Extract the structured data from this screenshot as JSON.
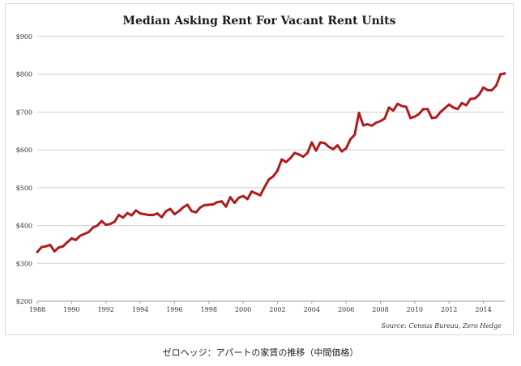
{
  "caption": "ゼロヘッジ：アパートの家賃の推移（中間価格）",
  "colors": {
    "line": "#b01c1c",
    "grid": "#cfcfcf",
    "frame": "#d9d9d9"
  },
  "chart_data": {
    "type": "line",
    "title": "Median Asking Rent For Vacant Rent Units",
    "xlabel": "",
    "ylabel": "",
    "source": "Source: Census Bureau, Zero Hedge",
    "xlim": [
      1988,
      2015.25
    ],
    "ylim": [
      200,
      900
    ],
    "y_ticks": [
      200,
      300,
      400,
      500,
      600,
      700,
      800,
      900
    ],
    "y_tick_labels": [
      "$200",
      "$300",
      "$400",
      "$500",
      "$600",
      "$700",
      "$800",
      "$900"
    ],
    "x_ticks": [
      1988,
      1990,
      1992,
      1994,
      1996,
      1998,
      2000,
      2002,
      2004,
      2006,
      2008,
      2010,
      2012,
      2014
    ],
    "x_tick_labels": [
      "1988",
      "1990",
      "1992",
      "1994",
      "1996",
      "1998",
      "2000",
      "2002",
      "2004",
      "2006",
      "2008",
      "2010",
      "2012",
      "2014"
    ],
    "grid": true,
    "legend": "none",
    "series": [
      {
        "x": [
          1988.0,
          1988.25,
          1988.5,
          1988.75,
          1989.0,
          1989.25,
          1989.5,
          1989.75,
          1990.0,
          1990.25,
          1990.5,
          1990.75,
          1991.0,
          1991.25,
          1991.5,
          1991.75,
          1992.0,
          1992.25,
          1992.5,
          1992.75,
          1993.0,
          1993.25,
          1993.5,
          1993.75,
          1994.0,
          1994.25,
          1994.5,
          1994.75,
          1995.0,
          1995.25,
          1995.5,
          1995.75,
          1996.0,
          1996.25,
          1996.5,
          1996.75,
          1997.0,
          1997.25,
          1997.5,
          1997.75,
          1998.0,
          1998.25,
          1998.5,
          1998.75,
          1999.0,
          1999.25,
          1999.5,
          1999.75,
          2000.0,
          2000.25,
          2000.5,
          2000.75,
          2001.0,
          2001.25,
          2001.5,
          2001.75,
          2002.0,
          2002.25,
          2002.5,
          2002.75,
          2003.0,
          2003.25,
          2003.5,
          2003.75,
          2004.0,
          2004.25,
          2004.5,
          2004.75,
          2005.0,
          2005.25,
          2005.5,
          2005.75,
          2006.0,
          2006.25,
          2006.5,
          2006.75,
          2007.0,
          2007.25,
          2007.5,
          2007.75,
          2008.0,
          2008.25,
          2008.5,
          2008.75,
          2009.0,
          2009.25,
          2009.5,
          2009.75,
          2010.0,
          2010.25,
          2010.5,
          2010.75,
          2011.0,
          2011.25,
          2011.5,
          2011.75,
          2012.0,
          2012.25,
          2012.5,
          2012.75,
          2013.0,
          2013.25,
          2013.5,
          2013.75,
          2014.0,
          2014.25,
          2014.5,
          2014.75,
          2015.0,
          2015.25
        ],
        "values": [
          330,
          343,
          345,
          349,
          332,
          342,
          345,
          356,
          366,
          362,
          373,
          378,
          383,
          395,
          400,
          412,
          402,
          404,
          410,
          428,
          421,
          433,
          427,
          440,
          432,
          430,
          428,
          428,
          432,
          422,
          438,
          444,
          430,
          438,
          448,
          455,
          438,
          435,
          448,
          454,
          455,
          456,
          462,
          464,
          450,
          475,
          460,
          474,
          478,
          470,
          490,
          485,
          480,
          502,
          522,
          530,
          545,
          575,
          568,
          578,
          592,
          588,
          582,
          592,
          620,
          598,
          620,
          618,
          608,
          602,
          612,
          596,
          604,
          628,
          640,
          698,
          665,
          668,
          664,
          672,
          676,
          683,
          712,
          704,
          722,
          716,
          714,
          684,
          688,
          695,
          708,
          708,
          684,
          686,
          700,
          710,
          720,
          712,
          708,
          724,
          718,
          735,
          736,
          746,
          765,
          758,
          758,
          770,
          800,
          802
        ]
      }
    ]
  }
}
